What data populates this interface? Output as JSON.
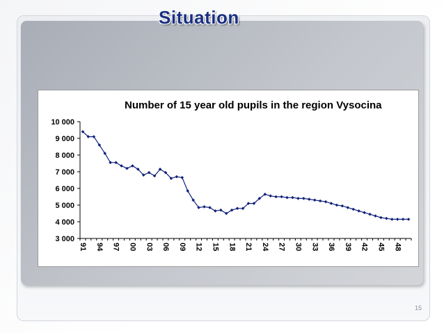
{
  "slide": {
    "title": "Situation",
    "page_number": "15"
  },
  "chart_data": {
    "type": "line",
    "title": "Number of 15 year old pupils in the region Vysocina",
    "xlabel": "",
    "ylabel": "",
    "ylim": [
      3000,
      10000
    ],
    "yticks": [
      10000,
      9000,
      8000,
      7000,
      6000,
      5000,
      4000,
      3000
    ],
    "ytick_labels": [
      "10 000",
      "9 000",
      "8 000",
      "7 000",
      "6 000",
      "5 000",
      "4 000",
      "3 000"
    ],
    "x": [
      "91",
      "92",
      "93",
      "94",
      "95",
      "96",
      "97",
      "98",
      "99",
      "00",
      "01",
      "02",
      "03",
      "04",
      "05",
      "06",
      "07",
      "08",
      "09",
      "10",
      "11",
      "12",
      "13",
      "14",
      "15",
      "16",
      "17",
      "18",
      "19",
      "20",
      "21",
      "22",
      "23",
      "24",
      "25",
      "26",
      "27",
      "28",
      "29",
      "30",
      "31",
      "32",
      "33",
      "34",
      "35",
      "36",
      "37",
      "38",
      "39",
      "40",
      "41",
      "42",
      "43",
      "44",
      "45",
      "46",
      "47",
      "48",
      "49",
      "50"
    ],
    "xtick_labels": [
      "91",
      "94",
      "97",
      "00",
      "03",
      "06",
      "09",
      "12",
      "15",
      "18",
      "21",
      "24",
      "27",
      "30",
      "33",
      "36",
      "39",
      "42",
      "45",
      "48"
    ],
    "grid": false,
    "legend": "none",
    "series": [
      {
        "values": [
          9400,
          9100,
          9100,
          8600,
          8100,
          7550,
          7550,
          7350,
          7200,
          7350,
          7150,
          6800,
          6950,
          6750,
          7150,
          6950,
          6600,
          6700,
          6650,
          5850,
          5300,
          4850,
          4900,
          4850,
          4650,
          4700,
          4500,
          4700,
          4800,
          4800,
          5100,
          5100,
          5400,
          5650,
          5550,
          5500,
          5500,
          5450,
          5450,
          5400,
          5400,
          5350,
          5300,
          5250,
          5200,
          5100,
          5000,
          4950,
          4850,
          4750,
          4650,
          4550,
          4450,
          4350,
          4250,
          4200,
          4150,
          4150,
          4150,
          4150
        ],
        "color": "#10207a"
      }
    ]
  }
}
